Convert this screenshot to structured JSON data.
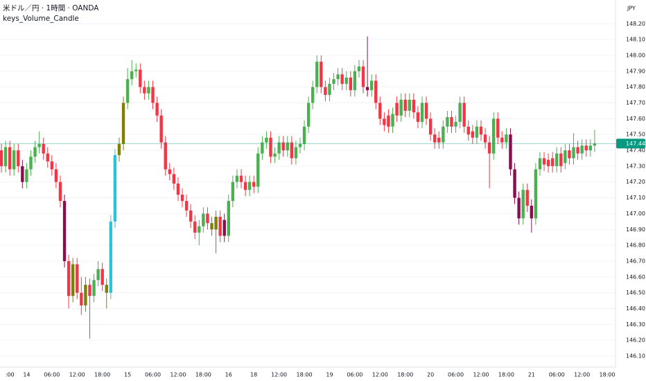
{
  "chart_data": {
    "type": "candlestick",
    "title": "米ドル／円 · 1時間 · OANDA",
    "y_label": "JPY",
    "grid": true,
    "last_price_color": "#089981",
    "ylim": [
      146.03,
      148.35
    ],
    "yticks": [
      {
        "value": 146.1,
        "label": "146.10"
      },
      {
        "value": 146.2,
        "label": "146.20"
      },
      {
        "value": 146.3,
        "label": "146.30"
      },
      {
        "value": 146.4,
        "label": "146.40"
      },
      {
        "value": 146.5,
        "label": "146.50"
      },
      {
        "value": 146.6,
        "label": "146.60"
      },
      {
        "value": 146.7,
        "label": "146.70"
      },
      {
        "value": 146.8,
        "label": "146.80"
      },
      {
        "value": 146.9,
        "label": "146.90"
      },
      {
        "value": 147.0,
        "label": "147.00"
      },
      {
        "value": 147.1,
        "label": "147.10"
      },
      {
        "value": 147.2,
        "label": "147.20"
      },
      {
        "value": 147.3,
        "label": "147.30"
      },
      {
        "value": 147.4,
        "label": "147.40"
      },
      {
        "value": 147.5,
        "label": "147.50"
      },
      {
        "value": 147.6,
        "label": "147.60"
      },
      {
        "value": 147.7,
        "label": "147.70"
      },
      {
        "value": 147.8,
        "label": "147.80"
      },
      {
        "value": 147.9,
        "label": "147.90"
      },
      {
        "value": 148.0,
        "label": "148.00"
      },
      {
        "value": 148.1,
        "label": "148.10"
      },
      {
        "value": 148.2,
        "label": "148.20"
      }
    ],
    "categories": [
      null,
      null,
      ":00",
      null,
      null,
      null,
      "14",
      null,
      null,
      null,
      null,
      null,
      "06:00",
      null,
      null,
      null,
      null,
      null,
      "12:00",
      null,
      null,
      null,
      null,
      null,
      "18:00",
      null,
      null,
      null,
      null,
      null,
      "15",
      null,
      null,
      null,
      null,
      null,
      "06:00",
      null,
      null,
      null,
      null,
      null,
      "12:00",
      null,
      null,
      null,
      null,
      null,
      "18:00",
      null,
      null,
      null,
      null,
      null,
      "16",
      null,
      null,
      null,
      null,
      null,
      "18",
      null,
      null,
      null,
      null,
      null,
      "12:00",
      null,
      null,
      null,
      null,
      null,
      "18:00",
      null,
      null,
      null,
      null,
      null,
      "19",
      null,
      null,
      null,
      null,
      null,
      "06:00",
      null,
      null,
      null,
      null,
      null,
      "12:00",
      null,
      null,
      null,
      null,
      null,
      "18:00",
      null,
      null,
      null,
      null,
      null,
      "20",
      null,
      null,
      null,
      null,
      null,
      "06:00",
      null,
      null,
      null,
      null,
      null,
      "12:00",
      null,
      null,
      null,
      null,
      null,
      "18:00",
      null,
      null,
      null,
      null,
      null,
      "21",
      null,
      null,
      null,
      null,
      null,
      "06:00",
      null,
      null,
      null,
      null,
      null,
      "12:00",
      null,
      null,
      null,
      null,
      null,
      "18:00"
    ],
    "series": [
      {
        "name": "keys_Volume_Candle",
        "open": [
          147.4,
          147.3,
          147.42,
          147.28,
          147.4,
          147.3,
          147.2,
          147.28,
          147.36,
          147.42,
          147.44,
          147.38,
          147.33,
          147.28,
          147.2,
          147.08,
          146.7,
          146.48,
          146.68,
          146.5,
          146.42,
          146.55,
          146.48,
          146.58,
          146.65,
          146.55,
          146.5,
          146.95,
          147.37,
          147.44,
          147.7,
          147.85,
          147.9,
          147.91,
          147.8,
          147.76,
          147.8,
          147.7,
          147.62,
          147.45,
          147.28,
          147.25,
          147.19,
          147.12,
          147.08,
          147.02,
          146.95,
          146.88,
          146.92,
          147.0,
          146.94,
          146.9,
          146.98,
          146.96,
          146.86,
          147.08,
          147.2,
          147.24,
          147.2,
          147.15,
          147.2,
          147.17,
          147.38,
          147.45,
          147.48,
          147.36,
          147.38,
          147.45,
          147.4,
          147.45,
          147.35,
          147.42,
          147.44,
          147.55,
          147.7,
          147.8,
          147.96,
          147.8,
          147.75,
          147.82,
          147.85,
          147.88,
          147.82,
          147.86,
          147.78,
          147.9,
          147.93,
          147.8,
          147.78,
          147.84,
          147.7,
          147.6,
          147.62,
          147.55,
          147.7,
          147.62,
          147.72,
          147.65,
          147.72,
          147.64,
          147.58,
          147.7,
          147.6,
          147.5,
          147.48,
          147.45,
          147.55,
          147.61,
          147.55,
          147.58,
          147.7,
          147.55,
          147.52,
          147.48,
          147.55,
          147.5,
          147.45,
          147.38,
          147.6,
          147.48,
          147.45,
          147.5,
          147.28,
          147.1,
          146.97,
          147.15,
          147.05,
          146.97,
          147.28,
          147.35,
          147.34,
          147.35,
          147.3,
          147.38,
          147.32,
          147.4,
          147.35,
          147.42,
          147.38,
          147.43,
          147.4,
          147.43,
          null,
          null,
          null
        ],
        "high": [
          147.44,
          147.46,
          147.46,
          147.44,
          147.44,
          147.34,
          147.32,
          147.4,
          147.46,
          147.52,
          147.48,
          147.42,
          147.37,
          147.32,
          147.24,
          147.12,
          146.74,
          146.72,
          146.72,
          146.6,
          146.6,
          146.59,
          146.62,
          146.7,
          146.69,
          146.59,
          146.99,
          147.41,
          147.48,
          147.74,
          147.92,
          147.97,
          147.95,
          147.95,
          147.84,
          147.84,
          147.84,
          147.74,
          147.66,
          147.49,
          147.32,
          147.29,
          147.23,
          147.16,
          147.12,
          147.06,
          146.99,
          146.96,
          147.04,
          147.04,
          146.98,
          147.02,
          147.02,
          147.0,
          147.12,
          147.24,
          147.28,
          147.28,
          147.24,
          147.24,
          147.24,
          147.42,
          147.49,
          147.52,
          147.52,
          147.42,
          147.49,
          147.49,
          147.49,
          147.49,
          147.46,
          147.48,
          147.59,
          147.74,
          147.84,
          148.0,
          148.0,
          147.84,
          147.86,
          147.89,
          147.92,
          147.92,
          147.9,
          147.9,
          147.94,
          147.97,
          147.97,
          148.12,
          147.88,
          147.88,
          147.74,
          147.64,
          147.66,
          147.67,
          147.74,
          147.76,
          147.76,
          147.76,
          147.76,
          147.68,
          147.74,
          147.74,
          147.64,
          147.54,
          147.52,
          147.59,
          147.65,
          147.65,
          147.62,
          147.74,
          147.74,
          147.59,
          147.56,
          147.59,
          147.59,
          147.54,
          147.49,
          147.64,
          147.64,
          147.52,
          147.54,
          147.54,
          147.32,
          147.14,
          147.19,
          147.19,
          147.09,
          147.32,
          147.39,
          147.39,
          147.38,
          147.39,
          147.42,
          147.42,
          147.44,
          147.44,
          147.51,
          147.46,
          147.47,
          147.47,
          147.47,
          147.53,
          null,
          null,
          null
        ],
        "low": [
          147.26,
          147.26,
          147.24,
          147.24,
          147.26,
          147.16,
          147.16,
          147.24,
          147.32,
          147.38,
          147.34,
          147.29,
          147.24,
          147.16,
          147.04,
          146.66,
          146.4,
          146.44,
          146.46,
          146.36,
          146.38,
          146.21,
          146.44,
          146.54,
          146.51,
          146.4,
          146.46,
          146.91,
          147.33,
          147.4,
          147.66,
          147.81,
          147.86,
          147.76,
          147.72,
          147.72,
          147.66,
          147.58,
          147.41,
          147.24,
          147.21,
          147.15,
          147.08,
          147.04,
          146.98,
          146.91,
          146.84,
          146.8,
          146.88,
          146.9,
          146.86,
          146.75,
          146.82,
          146.82,
          146.82,
          147.04,
          147.16,
          147.16,
          147.11,
          147.11,
          147.13,
          147.13,
          147.34,
          147.41,
          147.32,
          147.32,
          147.34,
          147.36,
          147.36,
          147.31,
          147.31,
          147.38,
          147.4,
          147.51,
          147.66,
          147.76,
          147.76,
          147.71,
          147.71,
          147.78,
          147.81,
          147.78,
          147.78,
          147.74,
          147.74,
          147.86,
          147.76,
          147.74,
          147.74,
          147.66,
          147.56,
          147.52,
          147.51,
          147.51,
          147.58,
          147.58,
          147.61,
          147.61,
          147.6,
          147.54,
          147.54,
          147.56,
          147.46,
          147.41,
          147.41,
          147.41,
          147.51,
          147.51,
          147.51,
          147.54,
          147.51,
          147.46,
          147.44,
          147.44,
          147.46,
          147.41,
          147.16,
          147.34,
          147.44,
          147.41,
          147.41,
          147.24,
          147.06,
          146.93,
          146.93,
          147.01,
          146.88,
          146.93,
          147.24,
          147.27,
          147.26,
          147.26,
          147.26,
          147.26,
          147.28,
          147.31,
          147.31,
          147.34,
          147.34,
          147.36,
          147.36,
          147.39,
          null,
          null,
          null
        ],
        "close": [
          147.3,
          147.42,
          147.28,
          147.4,
          147.3,
          147.2,
          147.28,
          147.36,
          147.42,
          147.44,
          147.38,
          147.33,
          147.28,
          147.2,
          147.08,
          146.7,
          146.48,
          146.68,
          146.5,
          146.42,
          146.55,
          146.48,
          146.58,
          146.65,
          146.55,
          146.5,
          146.95,
          147.37,
          147.44,
          147.7,
          147.85,
          147.9,
          147.91,
          147.8,
          147.76,
          147.8,
          147.7,
          147.62,
          147.45,
          147.28,
          147.25,
          147.19,
          147.12,
          147.08,
          147.02,
          146.95,
          146.88,
          146.92,
          147.0,
          146.94,
          146.9,
          146.98,
          146.86,
          146.86,
          147.08,
          147.2,
          147.24,
          147.2,
          147.15,
          147.2,
          147.17,
          147.38,
          147.45,
          147.48,
          147.36,
          147.38,
          147.45,
          147.4,
          147.45,
          147.35,
          147.42,
          147.44,
          147.55,
          147.7,
          147.8,
          147.96,
          147.8,
          147.75,
          147.82,
          147.85,
          147.88,
          147.82,
          147.86,
          147.78,
          147.9,
          147.93,
          147.8,
          147.78,
          147.84,
          147.7,
          147.6,
          147.56,
          147.55,
          147.63,
          147.62,
          147.72,
          147.65,
          147.72,
          147.64,
          147.58,
          147.7,
          147.6,
          147.5,
          147.45,
          147.45,
          147.55,
          147.61,
          147.55,
          147.58,
          147.7,
          147.55,
          147.5,
          147.48,
          147.55,
          147.5,
          147.45,
          147.38,
          147.6,
          147.48,
          147.45,
          147.5,
          147.28,
          147.1,
          146.97,
          147.15,
          147.05,
          146.97,
          147.28,
          147.35,
          147.31,
          147.3,
          147.3,
          147.38,
          147.3,
          147.4,
          147.35,
          147.42,
          147.38,
          147.43,
          147.4,
          147.43,
          147.443,
          null,
          null,
          null
        ],
        "colors": [
          "#f23645",
          "#4caf50",
          "#f23645",
          "#4caf50",
          "#f23645",
          "#880e4f",
          "#4caf50",
          "#4caf50",
          "#4caf50",
          "#4caf50",
          "#f23645",
          "#f23645",
          "#f23645",
          "#f23645",
          "#f23645",
          "#880e4f",
          "#f23645",
          "#808000",
          "#f23645",
          "#f23645",
          "#808000",
          "#f23645",
          "#4caf50",
          "#4caf50",
          "#f23645",
          "#808000",
          "#26c6da",
          "#26c6da",
          "#808000",
          "#808000",
          "#4caf50",
          "#4caf50",
          "#4caf50",
          "#f23645",
          "#f23645",
          "#4caf50",
          "#f23645",
          "#f23645",
          "#f23645",
          "#f23645",
          "#f23645",
          "#f23645",
          "#f23645",
          "#f23645",
          "#f23645",
          "#f23645",
          "#f23645",
          "#4caf50",
          "#4caf50",
          "#f23645",
          "#808000",
          "#808000",
          "#f23645",
          "#880e4f",
          "#4caf50",
          "#4caf50",
          "#4caf50",
          "#f23645",
          "#f23645",
          "#4caf50",
          "#f23645",
          "#4caf50",
          "#4caf50",
          "#4caf50",
          "#f23645",
          "#4caf50",
          "#4caf50",
          "#f23645",
          "#4caf50",
          "#f23645",
          "#4caf50",
          "#4caf50",
          "#4caf50",
          "#4caf50",
          "#4caf50",
          "#4caf50",
          "#f23645",
          "#f23645",
          "#4caf50",
          "#4caf50",
          "#4caf50",
          "#f23645",
          "#4caf50",
          "#f23645",
          "#4caf50",
          "#4caf50",
          "#f23645",
          "#880e4f",
          "#4caf50",
          "#f23645",
          "#f23645",
          "#f23645",
          "#f23645",
          "#4caf50",
          "#f23645",
          "#4caf50",
          "#f23645",
          "#4caf50",
          "#f23645",
          "#f23645",
          "#4caf50",
          "#f23645",
          "#f23645",
          "#f23645",
          "#f23645",
          "#4caf50",
          "#4caf50",
          "#f23645",
          "#4caf50",
          "#4caf50",
          "#f23645",
          "#f23645",
          "#f23645",
          "#4caf50",
          "#f23645",
          "#f23645",
          "#f23645",
          "#4caf50",
          "#f23645",
          "#f23645",
          "#4caf50",
          "#880e4f",
          "#880e4f",
          "#880e4f",
          "#4caf50",
          "#f23645",
          "#880e4f",
          "#4caf50",
          "#4caf50",
          "#f23645",
          "#f23645",
          "#f23645",
          "#4caf50",
          "#f23645",
          "#4caf50",
          "#f23645",
          "#4caf50",
          "#f23645",
          "#4caf50",
          "#f23645",
          "#4caf50",
          "#4caf50",
          null,
          null,
          null
        ]
      }
    ]
  }
}
